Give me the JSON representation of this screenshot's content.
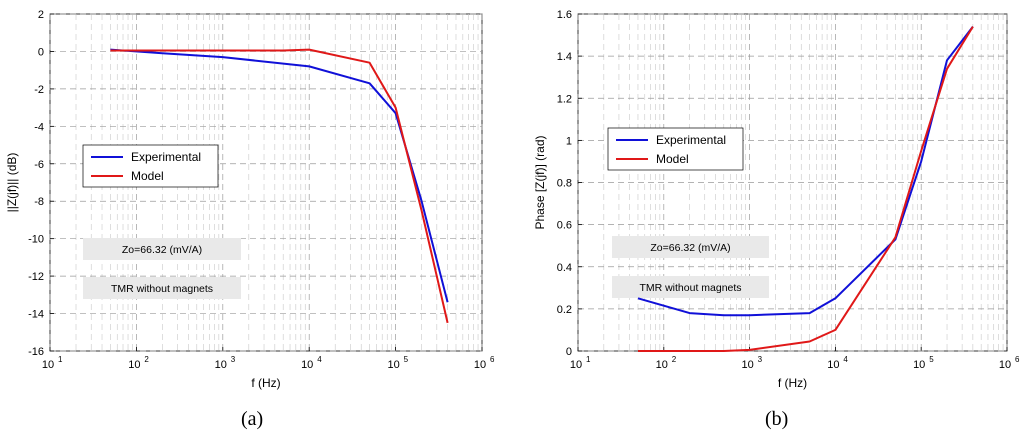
{
  "chart_data": [
    {
      "type": "line",
      "panel_label": "(a)",
      "xlabel": "f (Hz)",
      "ylabel": "||Z(jf)|| (dB)",
      "xscale": "log",
      "xlim": [
        10,
        1000000
      ],
      "ylim": [
        -16,
        2
      ],
      "yticks": [
        "2",
        "0",
        "-2",
        "-4",
        "-6",
        "-8",
        "-10",
        "-12",
        "-14",
        "-16"
      ],
      "xticks": [
        {
          "base": "10",
          "exp": "1"
        },
        {
          "base": "10",
          "exp": "2"
        },
        {
          "base": "10",
          "exp": "3"
        },
        {
          "base": "10",
          "exp": "4"
        },
        {
          "base": "10",
          "exp": "5"
        },
        {
          "base": "10",
          "exp": "6"
        }
      ],
      "grid": true,
      "legend": {
        "position": "middle-left",
        "entries": [
          "Experimental",
          "Model"
        ]
      },
      "annotations": [
        "Zo=66.32 (mV/A)",
        "TMR without magnets"
      ],
      "series": [
        {
          "name": "Experimental",
          "color": "#1010d8",
          "x": [
            50,
            200,
            1000,
            10000,
            50000,
            100000,
            200000,
            400000
          ],
          "y": [
            0.1,
            -0.1,
            -0.3,
            -0.8,
            -1.7,
            -3.3,
            -8.0,
            -13.4
          ]
        },
        {
          "name": "Model",
          "color": "#e01818",
          "x": [
            50,
            1000,
            5000,
            10000,
            50000,
            100000,
            200000,
            400000
          ],
          "y": [
            0.05,
            0.05,
            0.05,
            0.1,
            -0.6,
            -3.0,
            -8.5,
            -14.5
          ]
        }
      ]
    },
    {
      "type": "line",
      "panel_label": "(b)",
      "xlabel": "f (Hz)",
      "ylabel": "Phase [Z(jf)] (rad)",
      "xscale": "log",
      "xlim": [
        10,
        1000000
      ],
      "ylim": [
        0,
        1.6
      ],
      "yticks": [
        "1.6",
        "1.4",
        "1.2",
        "1",
        "0.8",
        "0.6",
        "0.4",
        "0.2",
        "0"
      ],
      "xticks": [
        {
          "base": "10",
          "exp": "1"
        },
        {
          "base": "10",
          "exp": "2"
        },
        {
          "base": "10",
          "exp": "3"
        },
        {
          "base": "10",
          "exp": "4"
        },
        {
          "base": "10",
          "exp": "5"
        },
        {
          "base": "10",
          "exp": "6"
        }
      ],
      "grid": true,
      "legend": {
        "position": "upper-left",
        "entries": [
          "Experimental",
          "Model"
        ]
      },
      "annotations": [
        "Zo=66.32 (mV/A)",
        "TMR without magnets"
      ],
      "series": [
        {
          "name": "Experimental",
          "color": "#1010d8",
          "x": [
            50,
            200,
            500,
            1000,
            5000,
            10000,
            50000,
            100000,
            200000,
            400000
          ],
          "y": [
            0.25,
            0.18,
            0.17,
            0.17,
            0.18,
            0.25,
            0.53,
            0.9,
            1.38,
            1.54
          ]
        },
        {
          "name": "Model",
          "color": "#e01818",
          "x": [
            50,
            200,
            500,
            1000,
            5000,
            10000,
            50000,
            100000,
            200000,
            400000
          ],
          "y": [
            0.0,
            0.0,
            0.0,
            0.005,
            0.045,
            0.1,
            0.54,
            0.95,
            1.34,
            1.54
          ]
        }
      ]
    }
  ]
}
